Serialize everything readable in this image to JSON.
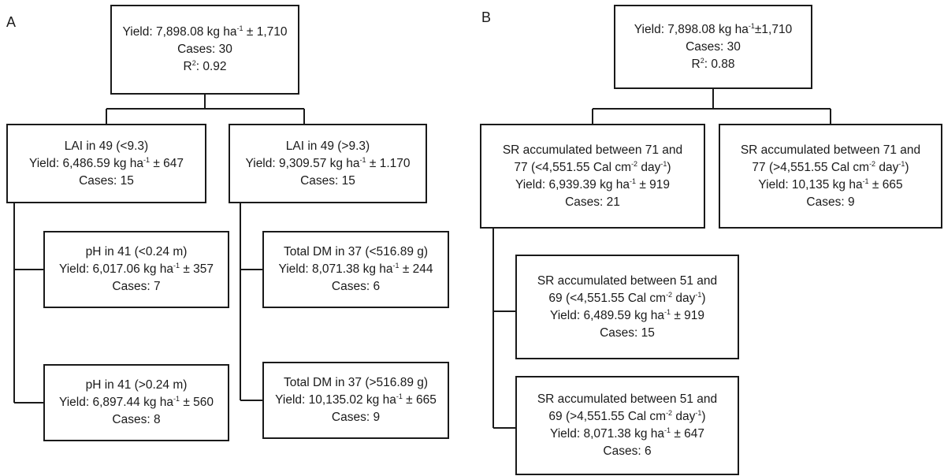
{
  "panel_a": {
    "label": "A",
    "root": {
      "lines": [
        [
          {
            "t": "Yield: 7,898.08 kg ha"
          },
          {
            "sup": "-1"
          },
          {
            "t": " ± 1,710"
          }
        ],
        [
          {
            "t": "Cases: 30"
          }
        ],
        [
          {
            "t": "R"
          },
          {
            "sup": "2"
          },
          {
            "t": ": 0.92"
          }
        ]
      ]
    },
    "lai_low": {
      "lines": [
        [
          {
            "t": "LAI in 49 (<9.3)"
          }
        ],
        [
          {
            "t": "Yield: 6,486.59 kg ha"
          },
          {
            "sup": "-1"
          },
          {
            "t": " ± 647"
          }
        ],
        [
          {
            "t": "Cases: 15"
          }
        ]
      ]
    },
    "lai_high": {
      "lines": [
        [
          {
            "t": "LAI in 49 (>9.3)"
          }
        ],
        [
          {
            "t": "Yield: 9,309.57 kg ha"
          },
          {
            "sup": "-1"
          },
          {
            "t": " ± 1.170"
          }
        ],
        [
          {
            "t": "Cases: 15"
          }
        ]
      ]
    },
    "ph_low": {
      "lines": [
        [
          {
            "t": "pH in 41 (<0.24 m)"
          }
        ],
        [
          {
            "t": "Yield: 6,017.06 kg ha"
          },
          {
            "sup": "-1"
          },
          {
            "t": " ± 357"
          }
        ],
        [
          {
            "t": "Cases: 7"
          }
        ]
      ]
    },
    "ph_high": {
      "lines": [
        [
          {
            "t": "pH in 41 (>0.24 m)"
          }
        ],
        [
          {
            "t": "Yield: 6,897.44 kg ha"
          },
          {
            "sup": "-1"
          },
          {
            "t": " ± 560"
          }
        ],
        [
          {
            "t": "Cases: 8"
          }
        ]
      ]
    },
    "dm_low": {
      "lines": [
        [
          {
            "t": "Total DM in 37 (<516.89 g)"
          }
        ],
        [
          {
            "t": "Yield: 8,071.38 kg ha"
          },
          {
            "sup": "-1"
          },
          {
            "t": " ± 244"
          }
        ],
        [
          {
            "t": "Cases: 6"
          }
        ]
      ]
    },
    "dm_high": {
      "lines": [
        [
          {
            "t": "Total DM in 37 (>516.89 g)"
          }
        ],
        [
          {
            "t": "Yield: 10,135.02 kg ha"
          },
          {
            "sup": "-1"
          },
          {
            "t": " ± 665"
          }
        ],
        [
          {
            "t": "Cases: 9"
          }
        ]
      ]
    }
  },
  "panel_b": {
    "label": "B",
    "root": {
      "lines": [
        [
          {
            "t": "Yield: 7,898.08 kg ha"
          },
          {
            "sup": "-1"
          },
          {
            "t": "±1,710"
          }
        ],
        [
          {
            "t": "Cases: 30"
          }
        ],
        [
          {
            "t": "R"
          },
          {
            "sup": "2"
          },
          {
            "t": ": 0.88"
          }
        ]
      ]
    },
    "sr77_low": {
      "lines": [
        [
          {
            "t": "SR accumulated between 71 and"
          }
        ],
        [
          {
            "t": "77 (<4,551.55 Cal cm"
          },
          {
            "sup": "-2"
          },
          {
            "t": " day"
          },
          {
            "sup": "-1"
          },
          {
            "t": ")"
          }
        ],
        [
          {
            "t": "Yield: 6,939.39 kg ha"
          },
          {
            "sup": "-1"
          },
          {
            "t": " ± 919"
          }
        ],
        [
          {
            "t": "Cases: 21"
          }
        ]
      ]
    },
    "sr77_high": {
      "lines": [
        [
          {
            "t": "SR accumulated between 71 and"
          }
        ],
        [
          {
            "t": "77 (>4,551.55 Cal cm"
          },
          {
            "sup": "-2"
          },
          {
            "t": " day"
          },
          {
            "sup": "-1"
          },
          {
            "t": ")"
          }
        ],
        [
          {
            "t": "Yield: 10,135 kg ha"
          },
          {
            "sup": "-1"
          },
          {
            "t": " ± 665"
          }
        ],
        [
          {
            "t": "Cases: 9"
          }
        ]
      ]
    },
    "sr69_low": {
      "lines": [
        [
          {
            "t": "SR accumulated between 51 and"
          }
        ],
        [
          {
            "t": "69 (<4,551.55 Cal cm"
          },
          {
            "sup": "-2"
          },
          {
            "t": " day"
          },
          {
            "sup": "-1"
          },
          {
            "t": ")"
          }
        ],
        [
          {
            "t": "Yield: 6,489.59 kg ha"
          },
          {
            "sup": "-1"
          },
          {
            "t": " ± 919"
          }
        ],
        [
          {
            "t": "Cases: 15"
          }
        ]
      ]
    },
    "sr69_high": {
      "lines": [
        [
          {
            "t": "SR accumulated between 51 and"
          }
        ],
        [
          {
            "t": "69 (>4,551.55 Cal cm"
          },
          {
            "sup": "-2"
          },
          {
            "t": " day"
          },
          {
            "sup": "-1"
          },
          {
            "t": ")"
          }
        ],
        [
          {
            "t": "Yield: 8,071.38 kg ha"
          },
          {
            "sup": "-1"
          },
          {
            "t": " ± 647"
          }
        ],
        [
          {
            "t": "Cases: 6"
          }
        ]
      ]
    }
  }
}
